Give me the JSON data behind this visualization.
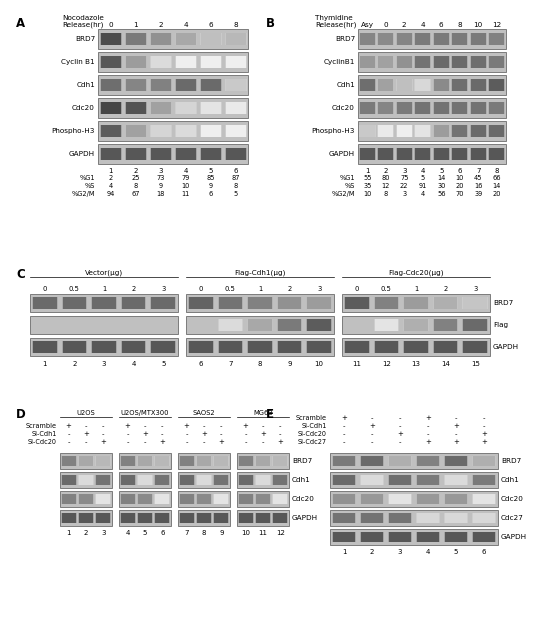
{
  "fig_width": 5.0,
  "fig_height": 6.07,
  "bg_color": "#ffffff",
  "panel_A": {
    "label": "A",
    "timepoints": [
      "0",
      "1",
      "2",
      "4",
      "6",
      "8"
    ],
    "blots": [
      "BRD7",
      "Cyclin B1",
      "Cdh1",
      "Cdc20",
      "Phospho-H3",
      "GAPDH"
    ],
    "lane_numbers": [
      "1",
      "2",
      "3",
      "4",
      "5",
      "6"
    ],
    "stats": {
      "%G1": [
        "2",
        "25",
        "73",
        "79",
        "85",
        "87"
      ],
      "%S": [
        "4",
        "8",
        "9",
        "10",
        "9",
        "8"
      ],
      "%G2/M": [
        "94",
        "67",
        "18",
        "11",
        "6",
        "5"
      ]
    },
    "blot_intensity": [
      [
        0.85,
        0.65,
        0.55,
        0.45,
        0.35,
        0.38
      ],
      [
        0.8,
        0.5,
        0.18,
        0.05,
        0.05,
        0.05
      ],
      [
        0.7,
        0.6,
        0.62,
        0.72,
        0.72,
        0.3
      ],
      [
        0.88,
        0.82,
        0.48,
        0.22,
        0.12,
        0.08
      ],
      [
        0.78,
        0.48,
        0.22,
        0.18,
        0.05,
        0.05
      ],
      [
        0.8,
        0.8,
        0.8,
        0.8,
        0.8,
        0.8
      ]
    ]
  },
  "panel_B": {
    "label": "B",
    "timepoints": [
      "Asy",
      "0",
      "2",
      "4",
      "6",
      "8",
      "10",
      "12"
    ],
    "blots": [
      "BRD7",
      "CyclinB1",
      "Cdh1",
      "Cdc20",
      "Phospho-H3",
      "GAPDH"
    ],
    "lane_numbers": [
      "1",
      "2",
      "3",
      "4",
      "5",
      "6",
      "7",
      "8"
    ],
    "stats": {
      "%G1": [
        "55",
        "80",
        "75",
        "5",
        "14",
        "10",
        "45",
        "66"
      ],
      "%S": [
        "35",
        "12",
        "22",
        "91",
        "30",
        "20",
        "16",
        "14"
      ],
      "%G2/M": [
        "10",
        "8",
        "3",
        "4",
        "56",
        "70",
        "39",
        "20"
      ]
    },
    "blot_intensity": [
      [
        0.6,
        0.58,
        0.6,
        0.65,
        0.65,
        0.65,
        0.65,
        0.62
      ],
      [
        0.52,
        0.48,
        0.55,
        0.68,
        0.72,
        0.72,
        0.7,
        0.65
      ],
      [
        0.7,
        0.48,
        0.35,
        0.2,
        0.58,
        0.7,
        0.72,
        0.78
      ],
      [
        0.65,
        0.6,
        0.65,
        0.68,
        0.68,
        0.68,
        0.68,
        0.65
      ],
      [
        0.3,
        0.08,
        0.05,
        0.12,
        0.5,
        0.68,
        0.72,
        0.72
      ],
      [
        0.8,
        0.8,
        0.8,
        0.8,
        0.8,
        0.8,
        0.8,
        0.8
      ]
    ]
  },
  "panel_C": {
    "label": "C",
    "groups": [
      {
        "title": "Vector(μg)",
        "doses": [
          "0",
          "0.5",
          "1",
          "2",
          "3"
        ],
        "lanes": [
          "1",
          "2",
          "3",
          "4",
          "5"
        ]
      },
      {
        "title": "Flag-Cdh1(μg)",
        "doses": [
          "0",
          "0.5",
          "1",
          "2",
          "3"
        ],
        "lanes": [
          "6",
          "7",
          "8",
          "9",
          "10"
        ]
      },
      {
        "title": "Flag-Cdc20(μg)",
        "doses": [
          "0",
          "0.5",
          "1",
          "2",
          "3"
        ],
        "lanes": [
          "11",
          "12",
          "13",
          "14",
          "15"
        ]
      }
    ],
    "blots": [
      "BRD7",
      "Flag",
      "GAPDH"
    ],
    "blot_intensity": [
      [
        [
          0.72,
          0.72,
          0.72,
          0.72,
          0.72
        ],
        [
          0.75,
          0.68,
          0.62,
          0.55,
          0.5
        ],
        [
          0.78,
          0.62,
          0.5,
          0.42,
          0.32
        ]
      ],
      [
        [
          0.02,
          0.02,
          0.02,
          0.02,
          0.02
        ],
        [
          0.02,
          0.18,
          0.45,
          0.65,
          0.78
        ],
        [
          0.02,
          0.12,
          0.42,
          0.62,
          0.72
        ]
      ],
      [
        [
          0.8,
          0.8,
          0.8,
          0.8,
          0.8
        ],
        [
          0.8,
          0.8,
          0.8,
          0.8,
          0.8
        ],
        [
          0.8,
          0.8,
          0.8,
          0.8,
          0.8
        ]
      ]
    ]
  },
  "panel_D": {
    "label": "D",
    "groups": [
      {
        "title": "U2OS",
        "lanes": [
          "1",
          "2",
          "3"
        ]
      },
      {
        "title": "U2OS/MTX300",
        "lanes": [
          "4",
          "5",
          "6"
        ]
      },
      {
        "title": "SAOS2",
        "lanes": [
          "7",
          "8",
          "9"
        ]
      },
      {
        "title": "MG63",
        "lanes": [
          "10",
          "11",
          "12"
        ]
      }
    ],
    "conditions": [
      "Scramble",
      "Si-Cdh1",
      "Si-Cdc20"
    ],
    "signs": [
      [
        "+",
        "-",
        "-",
        "+",
        "-",
        "-",
        "+",
        "-",
        "-",
        "+",
        "-",
        "-"
      ],
      [
        "-",
        "+",
        "-",
        "-",
        "+",
        "-",
        "-",
        "+",
        "-",
        "-",
        "+",
        "-"
      ],
      [
        "-",
        "-",
        "+",
        "-",
        "-",
        "+",
        "-",
        "-",
        "+",
        "-",
        "-",
        "+"
      ]
    ],
    "blots": [
      "BRD7",
      "Cdh1",
      "Cdc20",
      "GAPDH"
    ],
    "blot_intensity": [
      [
        [
          0.62,
          0.45,
          0.38
        ],
        [
          0.62,
          0.45,
          0.38
        ],
        [
          0.62,
          0.45,
          0.38
        ],
        [
          0.62,
          0.45,
          0.38
        ]
      ],
      [
        [
          0.72,
          0.18,
          0.68
        ],
        [
          0.72,
          0.18,
          0.68
        ],
        [
          0.72,
          0.18,
          0.68
        ],
        [
          0.72,
          0.18,
          0.68
        ]
      ],
      [
        [
          0.62,
          0.58,
          0.12
        ],
        [
          0.62,
          0.58,
          0.12
        ],
        [
          0.62,
          0.58,
          0.12
        ],
        [
          0.62,
          0.58,
          0.12
        ]
      ],
      [
        [
          0.8,
          0.8,
          0.8
        ],
        [
          0.8,
          0.8,
          0.8
        ],
        [
          0.8,
          0.8,
          0.8
        ],
        [
          0.8,
          0.8,
          0.8
        ]
      ]
    ],
    "lane_numbers": [
      "1",
      "2",
      "3",
      "4",
      "5",
      "6",
      "7",
      "8",
      "9",
      "10",
      "11",
      "12"
    ]
  },
  "panel_E": {
    "label": "E",
    "conditions": [
      "Scramble",
      "Si-Cdh1",
      "Si-Cdc20",
      "Si-Cdc27"
    ],
    "signs": [
      [
        "+",
        "-",
        "-",
        "+",
        "-",
        "-"
      ],
      [
        "-",
        "+",
        "-",
        "-",
        "+",
        "-"
      ],
      [
        "-",
        "-",
        "+",
        "-",
        "-",
        "+"
      ],
      [
        "-",
        "-",
        "-",
        "+",
        "+",
        "+"
      ]
    ],
    "blots": [
      "BRD7",
      "Cdh1",
      "Cdc20",
      "Cdc27",
      "GAPDH"
    ],
    "blot_intensity": [
      [
        0.65,
        0.72,
        0.42,
        0.62,
        0.72,
        0.42
      ],
      [
        0.72,
        0.18,
        0.7,
        0.65,
        0.18,
        0.65
      ],
      [
        0.55,
        0.52,
        0.12,
        0.52,
        0.52,
        0.12
      ],
      [
        0.68,
        0.68,
        0.68,
        0.2,
        0.2,
        0.2
      ],
      [
        0.8,
        0.8,
        0.8,
        0.8,
        0.8,
        0.8
      ]
    ],
    "lane_numbers": [
      "1",
      "2",
      "3",
      "4",
      "5",
      "6"
    ]
  }
}
